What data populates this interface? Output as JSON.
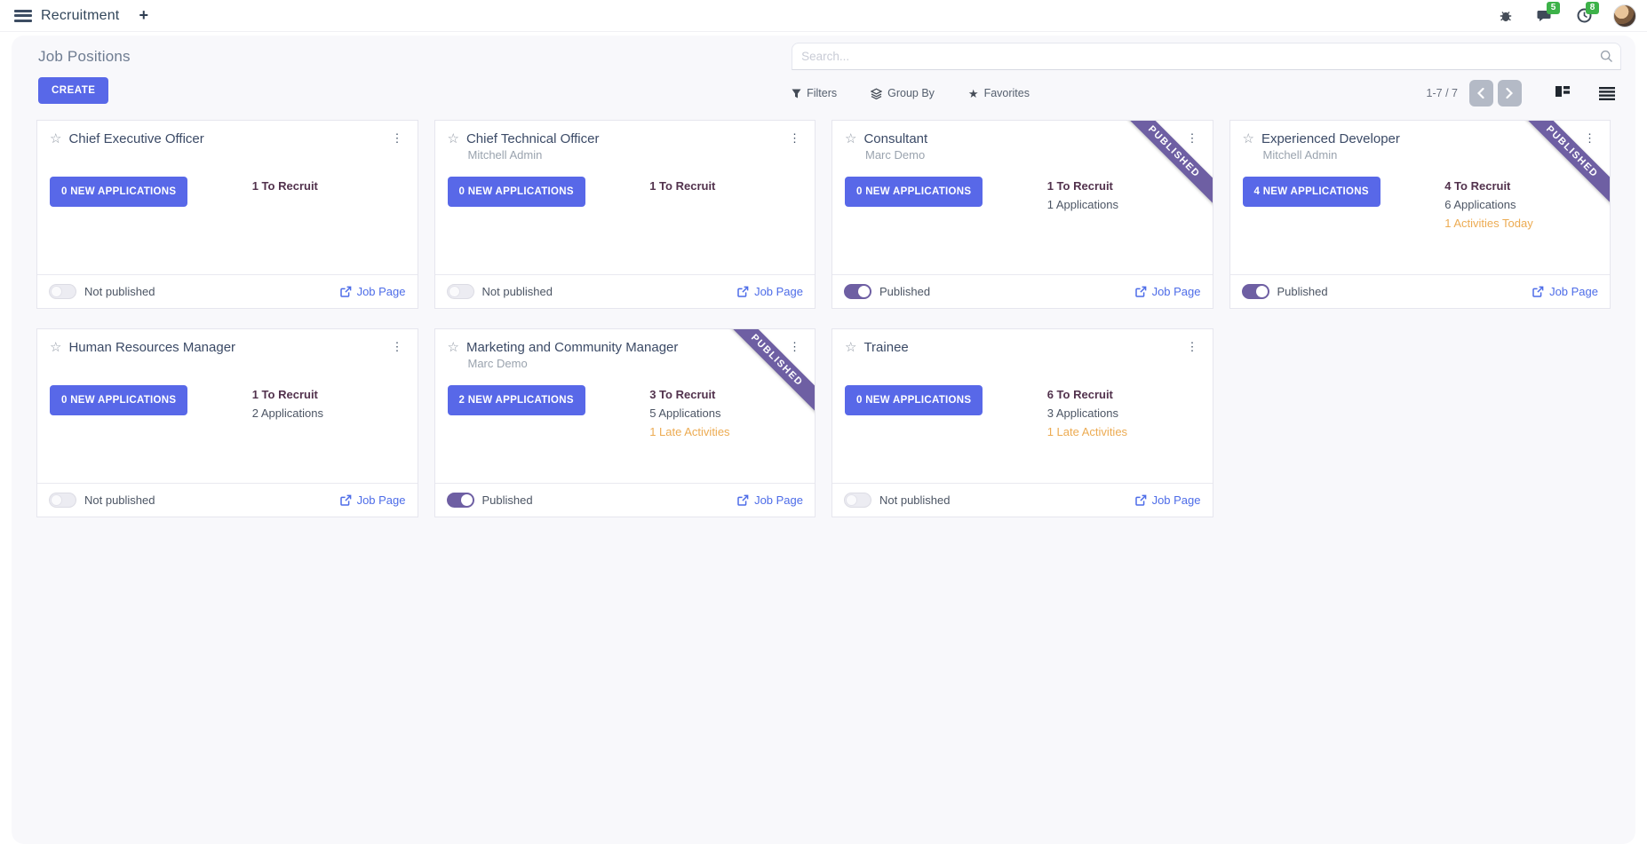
{
  "icons": {
    "menu": "hamburger",
    "plus": "+",
    "kebab": "⋮",
    "star_outline": "☆",
    "favorites_star": "★"
  },
  "colors": {
    "accent": "#5868e8",
    "ribbon_purple": "#6e5fa3",
    "warning_orange": "#ecab52",
    "badge_green": "#3db249",
    "recruit_text": "#52324d"
  },
  "navbar": {
    "app_name": "Recruitment",
    "messages_badge": "5",
    "activities_badge": "8"
  },
  "control_panel": {
    "title": "Job Positions",
    "create_label": "CREATE",
    "search_placeholder": "Search...",
    "filters_label": "Filters",
    "group_by_label": "Group By",
    "favorites_label": "Favorites",
    "pager_text": "1-7 / 7"
  },
  "card_labels": {
    "job_page": "Job Page",
    "published": "Published",
    "not_published": "Not published",
    "ribbon": "PUBLISHED"
  },
  "cards": [
    {
      "title": "Chief Executive Officer",
      "manager": "",
      "button_label": "0 NEW APPLICATIONS",
      "stats": [
        {
          "text": "1 To Recruit",
          "type": "recruit"
        }
      ],
      "published": false,
      "ribbon": false
    },
    {
      "title": "Chief Technical Officer",
      "manager": "Mitchell Admin",
      "button_label": "0 NEW APPLICATIONS",
      "stats": [
        {
          "text": "1 To Recruit",
          "type": "recruit"
        }
      ],
      "published": false,
      "ribbon": false
    },
    {
      "title": "Consultant",
      "manager": "Marc Demo",
      "button_label": "0 NEW APPLICATIONS",
      "stats": [
        {
          "text": "1 To Recruit",
          "type": "recruit"
        },
        {
          "text": "1 Applications",
          "type": "normal"
        }
      ],
      "published": true,
      "ribbon": true
    },
    {
      "title": "Experienced Developer",
      "manager": "Mitchell Admin",
      "button_label": "4 NEW APPLICATIONS",
      "stats": [
        {
          "text": "4 To Recruit",
          "type": "recruit"
        },
        {
          "text": "6 Applications",
          "type": "normal"
        },
        {
          "text": "1 Activities Today",
          "type": "warning"
        }
      ],
      "published": true,
      "ribbon": true
    },
    {
      "title": "Human Resources Manager",
      "manager": "",
      "button_label": "0 NEW APPLICATIONS",
      "stats": [
        {
          "text": "1 To Recruit",
          "type": "recruit"
        },
        {
          "text": "2 Applications",
          "type": "normal"
        }
      ],
      "published": false,
      "ribbon": false
    },
    {
      "title": "Marketing and Community Manager",
      "manager": "Marc Demo",
      "button_label": "2 NEW APPLICATIONS",
      "stats": [
        {
          "text": "3 To Recruit",
          "type": "recruit"
        },
        {
          "text": "5 Applications",
          "type": "normal"
        },
        {
          "text": "1 Late Activities",
          "type": "warning"
        }
      ],
      "published": true,
      "ribbon": true
    },
    {
      "title": "Trainee",
      "manager": "",
      "button_label": "0 NEW APPLICATIONS",
      "stats": [
        {
          "text": "6 To Recruit",
          "type": "recruit"
        },
        {
          "text": "3 Applications",
          "type": "normal"
        },
        {
          "text": "1 Late Activities",
          "type": "warning"
        }
      ],
      "published": false,
      "ribbon": false
    }
  ]
}
